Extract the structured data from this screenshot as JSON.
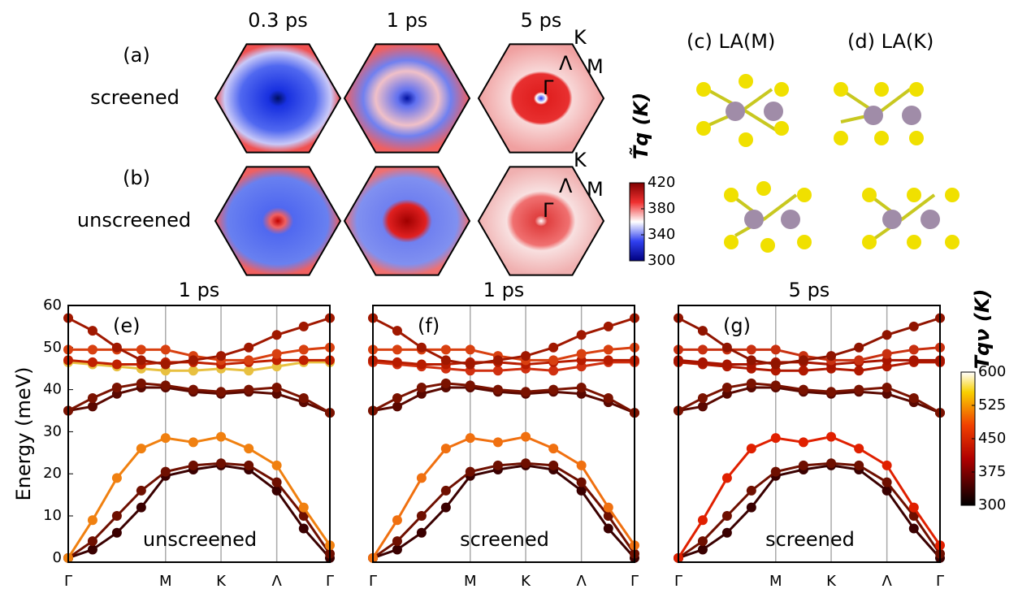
{
  "top": {
    "times": [
      "0.3 ps",
      "1 ps",
      "5 ps"
    ],
    "rows": [
      {
        "label": "(a)",
        "name": "screened"
      },
      {
        "label": "(b)",
        "name": "unscreened"
      }
    ],
    "points": [
      "K",
      "Λ",
      "M",
      "Γ"
    ],
    "structures": [
      "(c) LA(M)",
      "(d) LA(K)"
    ]
  },
  "colorbars": [
    {
      "label": "T̃q (K)",
      "lim": [
        300,
        420
      ],
      "ticks": [
        300,
        340,
        380,
        420
      ]
    },
    {
      "label": "Tqν (K)",
      "lim": [
        300,
        600
      ],
      "ticks": [
        300,
        375,
        450,
        525,
        600
      ]
    }
  ],
  "chart_data": [
    {
      "type": "line",
      "title": "1 ps",
      "panel": "(e)",
      "annotation": "unscreened",
      "ylabel": "Energy (meV)",
      "x": [
        0,
        0.093,
        0.186,
        0.279,
        0.372,
        0.478,
        0.584,
        0.69,
        0.797,
        0.9,
        1
      ],
      "xlim": [
        0,
        1
      ],
      "xticks": [
        {
          "value": 0,
          "label": "Γ"
        },
        {
          "value": 0.372,
          "label": "M"
        },
        {
          "value": 0.584,
          "label": "K"
        },
        {
          "value": 0.797,
          "label": "Λ"
        },
        {
          "value": 1,
          "label": "Γ"
        }
      ],
      "ylim": [
        -1,
        60
      ],
      "yticks": [
        0,
        10,
        20,
        30,
        40,
        50,
        60
      ],
      "series": [
        {
          "color": "#3a0000",
          "values": [
            0,
            2,
            6,
            12,
            19.5,
            21,
            22,
            21,
            16,
            7,
            0
          ]
        },
        {
          "color": "#6e0f00",
          "values": [
            0,
            4,
            10,
            16,
            20.5,
            22,
            22.5,
            22,
            18,
            10,
            1
          ]
        },
        {
          "color": "#f08010",
          "values": [
            0,
            9,
            19,
            26,
            28.5,
            27.5,
            28.8,
            26,
            22,
            12,
            3
          ]
        },
        {
          "color": "#5a0800",
          "values": [
            35,
            36,
            39,
            40.5,
            40.5,
            39.5,
            39,
            39.5,
            39,
            37,
            34.5
          ]
        },
        {
          "color": "#7a1200",
          "values": [
            35,
            38,
            40.5,
            41.5,
            41,
            40,
            39.5,
            40,
            40.5,
            38,
            34.5
          ]
        },
        {
          "color": "#e8c040",
          "values": [
            46.5,
            46,
            45.5,
            45,
            44.5,
            44.5,
            45,
            44.5,
            45.5,
            46.5,
            46.5
          ]
        },
        {
          "color": "#c02000",
          "values": [
            47,
            46.5,
            46,
            46,
            46.5,
            46.5,
            46,
            46.5,
            47,
            47,
            47
          ]
        },
        {
          "color": "#d84010",
          "values": [
            49.5,
            49.5,
            49.5,
            49.5,
            49.5,
            48,
            47,
            47,
            48.5,
            49.5,
            50
          ]
        },
        {
          "color": "#a01800",
          "values": [
            57,
            54,
            50,
            47,
            46,
            47,
            48,
            50,
            53,
            55,
            57
          ]
        }
      ]
    },
    {
      "type": "line",
      "title": "1 ps",
      "panel": "(f)",
      "annotation": "screened",
      "x": [
        0,
        0.093,
        0.186,
        0.279,
        0.372,
        0.478,
        0.584,
        0.69,
        0.797,
        0.9,
        1
      ],
      "xlim": [
        0,
        1
      ],
      "xticks": [
        {
          "value": 0,
          "label": "Γ"
        },
        {
          "value": 0.372,
          "label": "M"
        },
        {
          "value": 0.584,
          "label": "K"
        },
        {
          "value": 0.797,
          "label": "Λ"
        },
        {
          "value": 1,
          "label": "Γ"
        }
      ],
      "ylim": [
        -1,
        60
      ],
      "series": [
        {
          "color": "#3a0000",
          "values": [
            0,
            2,
            6,
            12,
            19.5,
            21,
            22,
            21,
            16,
            7,
            0
          ]
        },
        {
          "color": "#6e0f00",
          "values": [
            0,
            4,
            10,
            16,
            20.5,
            22,
            22.5,
            22,
            18,
            10,
            1
          ]
        },
        {
          "color": "#f07010",
          "values": [
            0,
            9,
            19,
            26,
            28.5,
            27.5,
            28.8,
            26,
            22,
            12,
            3
          ]
        },
        {
          "color": "#5a0800",
          "values": [
            35,
            36,
            39,
            40.5,
            40.5,
            39.5,
            39,
            39.5,
            39,
            37,
            34.5
          ]
        },
        {
          "color": "#7a1200",
          "values": [
            35,
            38,
            40.5,
            41.5,
            41,
            40,
            39.5,
            40,
            40.5,
            38,
            34.5
          ]
        },
        {
          "color": "#d03010",
          "values": [
            46.5,
            46,
            45.5,
            45,
            44.5,
            44.5,
            45,
            44.5,
            45.5,
            46.5,
            46.5
          ]
        },
        {
          "color": "#b81c00",
          "values": [
            47,
            46.5,
            46,
            46,
            46.5,
            46.5,
            46,
            46.5,
            47,
            47,
            47
          ]
        },
        {
          "color": "#d84010",
          "values": [
            49.5,
            49.5,
            49.5,
            49.5,
            49.5,
            48,
            47,
            47,
            48.5,
            49.5,
            50
          ]
        },
        {
          "color": "#a01800",
          "values": [
            57,
            54,
            50,
            47,
            46,
            47,
            48,
            50,
            53,
            55,
            57
          ]
        }
      ]
    },
    {
      "type": "line",
      "title": "5 ps",
      "panel": "(g)",
      "annotation": "screened",
      "x": [
        0,
        0.093,
        0.186,
        0.279,
        0.372,
        0.478,
        0.584,
        0.69,
        0.797,
        0.9,
        1
      ],
      "xlim": [
        0,
        1
      ],
      "xticks": [
        {
          "value": 0,
          "label": "Γ"
        },
        {
          "value": 0.372,
          "label": "M"
        },
        {
          "value": 0.584,
          "label": "K"
        },
        {
          "value": 0.797,
          "label": "Λ"
        },
        {
          "value": 1,
          "label": "Γ"
        }
      ],
      "ylim": [
        -1,
        60
      ],
      "series": [
        {
          "color": "#3a0000",
          "values": [
            0,
            2,
            6,
            12,
            19.5,
            21,
            22,
            21,
            16,
            7,
            0
          ]
        },
        {
          "color": "#6e0f00",
          "values": [
            0,
            4,
            10,
            16,
            20.5,
            22,
            22.5,
            22,
            18,
            10,
            1
          ]
        },
        {
          "color": "#e02000",
          "values": [
            0,
            9,
            19,
            26,
            28.5,
            27.5,
            28.8,
            26,
            22,
            12,
            3
          ]
        },
        {
          "color": "#5a0800",
          "values": [
            35,
            36,
            39,
            40.5,
            40.5,
            39.5,
            39,
            39.5,
            39,
            37,
            34.5
          ]
        },
        {
          "color": "#7a1200",
          "values": [
            35,
            38,
            40.5,
            41.5,
            41,
            40,
            39.5,
            40,
            40.5,
            38,
            34.5
          ]
        },
        {
          "color": "#b01800",
          "values": [
            46.5,
            46,
            45.5,
            45,
            44.5,
            44.5,
            45,
            44.5,
            45.5,
            46.5,
            46.5
          ]
        },
        {
          "color": "#a81400",
          "values": [
            47,
            46.5,
            46,
            46,
            46.5,
            46.5,
            46,
            46.5,
            47,
            47,
            47
          ]
        },
        {
          "color": "#c83010",
          "values": [
            49.5,
            49.5,
            49.5,
            49.5,
            49.5,
            48,
            47,
            47,
            48.5,
            49.5,
            50
          ]
        },
        {
          "color": "#901400",
          "values": [
            57,
            54,
            50,
            47,
            46,
            47,
            48,
            50,
            53,
            55,
            57
          ]
        }
      ]
    }
  ]
}
